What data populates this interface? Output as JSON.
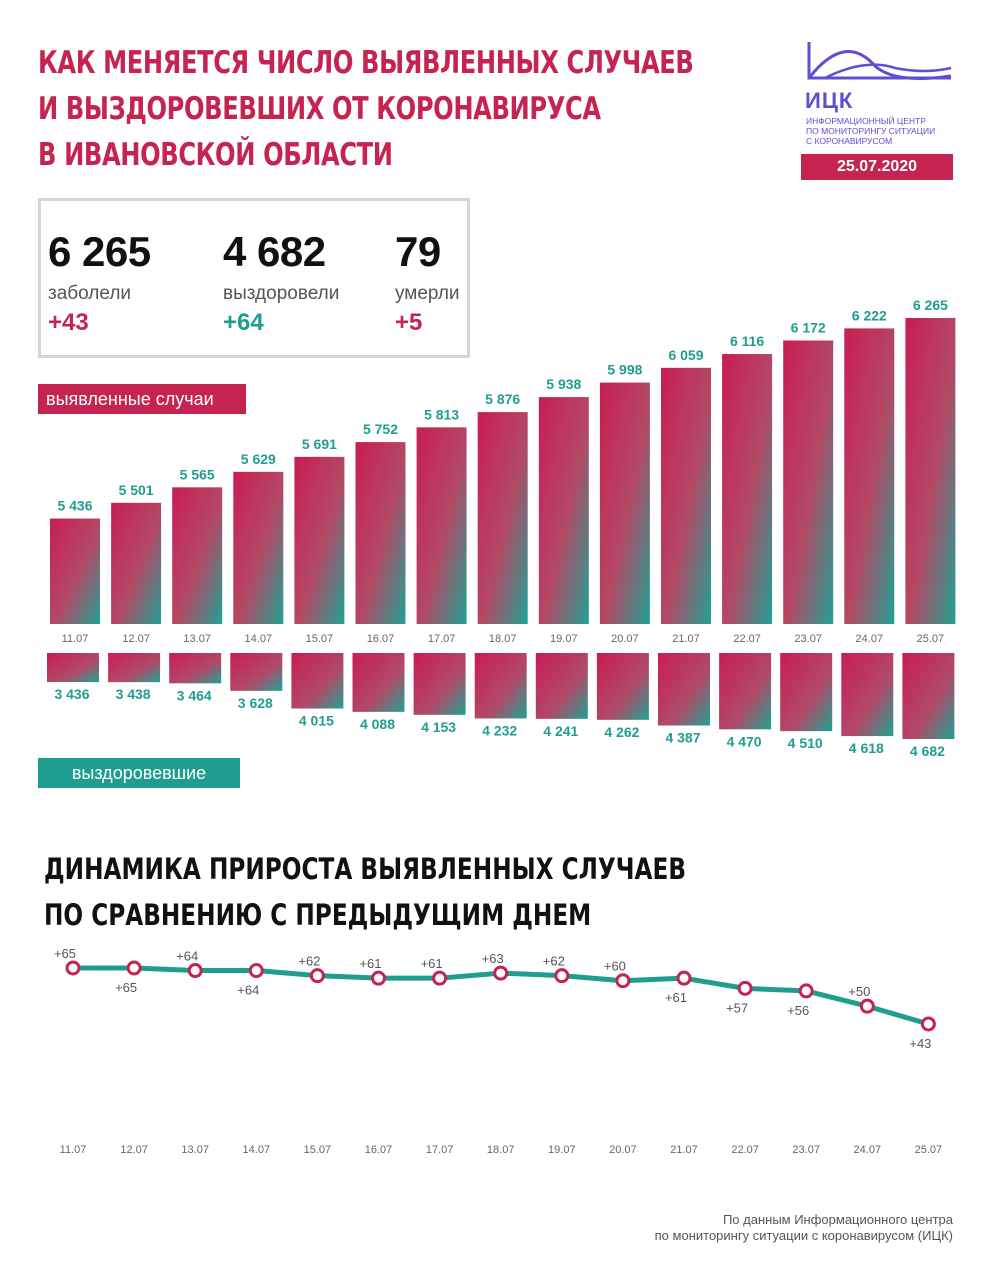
{
  "title": {
    "line1": "КАК МЕНЯЕТСЯ ЧИСЛО ВЫЯВЛЕННЫХ СЛУЧАЕВ",
    "line2": "И ВЫЗДОРОВЕВШИХ ОТ КОРОНАВИРУСА",
    "line3": "В ИВАНОВСКОЙ ОБЛАСТИ"
  },
  "logo": {
    "name": "ИЦК",
    "sub1": "ИНФОРМАЦИОННЫЙ ЦЕНТР",
    "sub2": "ПО МОНИТОРИНГУ СИТУАЦИИ",
    "sub3": "С КОРОНАВИРУСОМ",
    "date": "25.07.2020"
  },
  "stats": {
    "cases": {
      "value": "6 265",
      "label": "заболели",
      "delta": "+43"
    },
    "recovered": {
      "value": "4 682",
      "label": "выздоровели",
      "delta": "+64"
    },
    "deaths": {
      "value": "79",
      "label": "умерли",
      "delta": "+5"
    }
  },
  "legend": {
    "cases": "выявленные случаи",
    "recovered": "выздоровевшие"
  },
  "colors": {
    "red": "#c4244f",
    "teal": "#1f9e8f"
  },
  "chart_data": [
    {
      "type": "bar",
      "categories": [
        "11.07",
        "12.07",
        "13.07",
        "14.07",
        "15.07",
        "16.07",
        "17.07",
        "18.07",
        "19.07",
        "20.07",
        "21.07",
        "22.07",
        "23.07",
        "24.07",
        "25.07"
      ],
      "series": [
        {
          "name": "выявленные случаи",
          "values": [
            5436,
            5501,
            5565,
            5629,
            5691,
            5752,
            5813,
            5876,
            5938,
            5998,
            6059,
            6116,
            6172,
            6222,
            6265
          ],
          "labels": [
            "5 436",
            "5 501",
            "5 565",
            "5 629",
            "5 691",
            "5 752",
            "5 813",
            "5 876",
            "5 938",
            "5 998",
            "6 059",
            "6 116",
            "6 172",
            "6 222",
            "6 265"
          ]
        },
        {
          "name": "выздоровевшие",
          "values": [
            3436,
            3438,
            3464,
            3628,
            4015,
            4088,
            4153,
            4232,
            4241,
            4262,
            4387,
            4470,
            4510,
            4618,
            4682
          ],
          "labels": [
            "3 436",
            "3 438",
            "3 464",
            "3 628",
            "4 015",
            "4 088",
            "4 153",
            "4 232",
            "4 241",
            "4 262",
            "4 387",
            "4 470",
            "4 510",
            "4 618",
            "4 682"
          ]
        }
      ]
    },
    {
      "type": "line",
      "title": "ДИНАМИКА ПРИРОСТА ВЫЯВЛЕННЫХ СЛУЧАЕВ ПО СРАВНЕНИЮ С ПРЕДЫДУЩИМ ДНЕМ",
      "title_line1": "ДИНАМИКА ПРИРОСТА ВЫЯВЛЕННЫХ СЛУЧАЕВ",
      "title_line2": "ПО СРАВНЕНИЮ С ПРЕДЫДУЩИМ ДНЕМ",
      "categories": [
        "11.07",
        "12.07",
        "13.07",
        "14.07",
        "15.07",
        "16.07",
        "17.07",
        "18.07",
        "19.07",
        "20.07",
        "21.07",
        "22.07",
        "23.07",
        "24.07",
        "25.07"
      ],
      "values": [
        65,
        65,
        64,
        64,
        62,
        61,
        61,
        63,
        62,
        60,
        61,
        57,
        56,
        50,
        43
      ],
      "labels": [
        "+65",
        "+65",
        "+64",
        "+64",
        "+62",
        "+61",
        "+61",
        "+63",
        "+62",
        "+60",
        "+61",
        "+57",
        "+56",
        "+50",
        "+43"
      ],
      "label_position": [
        "above",
        "below",
        "above",
        "below",
        "above",
        "above",
        "above",
        "above",
        "above",
        "above",
        "below",
        "below",
        "below",
        "above",
        "below"
      ]
    }
  ],
  "source": {
    "line1": "По данным Информационного центра",
    "line2": "по мониторингу ситуации с коронавирусом (ИЦК)"
  }
}
